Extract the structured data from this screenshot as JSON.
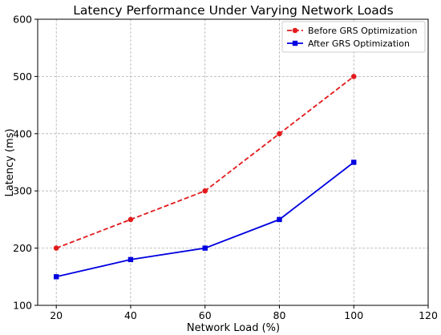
{
  "chart_data": {
    "type": "line",
    "title": "Latency Performance Under Varying Network Loads",
    "xlabel": "Network Load (%)",
    "ylabel": "Latency (ms)",
    "xlim": [
      15,
      120
    ],
    "ylim": [
      100,
      600
    ],
    "xticks": [
      20,
      40,
      60,
      80,
      100,
      120
    ],
    "yticks": [
      100,
      200,
      300,
      400,
      500,
      600
    ],
    "grid": true,
    "legend_position": "top-right",
    "x": [
      20,
      40,
      60,
      80,
      100
    ],
    "series": [
      {
        "name": "Before GRS Optimization",
        "values": [
          200,
          250,
          300,
          400,
          500
        ],
        "color": "#e31a1c",
        "marker": "circle",
        "linestyle": "dashed"
      },
      {
        "name": "After GRS Optimization",
        "values": [
          150,
          180,
          200,
          250,
          350
        ],
        "color": "#0000e0",
        "marker": "square",
        "linestyle": "solid"
      }
    ]
  }
}
